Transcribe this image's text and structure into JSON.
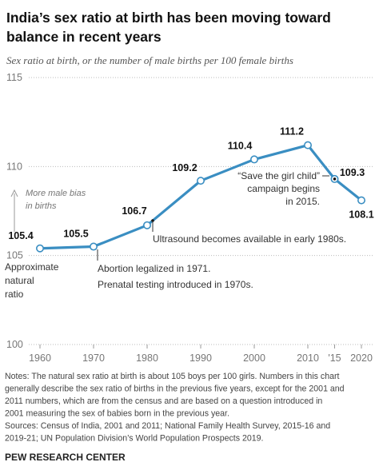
{
  "chart_data": {
    "type": "line",
    "title": [
      "India’s sex ratio at birth has been moving toward",
      "balance in recent years"
    ],
    "subtitle": "Sex ratio at birth, or the number of male births per 100 female births",
    "x": [
      1960,
      1970,
      1980,
      1990,
      2000,
      2010,
      2015,
      2020
    ],
    "series": [
      {
        "name": "Sex ratio at birth",
        "color": "#3a8ec2",
        "values": [
          105.4,
          105.5,
          106.7,
          109.2,
          110.4,
          111.2,
          109.3,
          108.1
        ]
      }
    ],
    "xlim": [
      1960,
      2020
    ],
    "xticks": [
      1960,
      1970,
      1980,
      1990,
      2000,
      2010,
      {
        "value": 2015,
        "label": "'15"
      },
      2020
    ],
    "ylim": [
      100,
      115
    ],
    "yticks": [
      100,
      105,
      110,
      115
    ],
    "grid": true,
    "annotations": {
      "bias": [
        "More male bias",
        "in births"
      ],
      "natural": [
        "Approximate",
        "natural",
        "ratio"
      ],
      "abortion": "Abortion legalized in 1971.",
      "prenatal": "Prenatal testing introduced in 1970s.",
      "ultrasound": "Ultrasound becomes available in early 1980s.",
      "campaign": [
        "“Save the girl child”",
        "campaign begins",
        "in 2015."
      ]
    },
    "notes": [
      "Notes: The natural sex ratio at birth is about 105 boys per 100 girls. Numbers in this chart",
      "generally describe the sex ratio of births in the previous five years, except for the 2001 and",
      "2011 numbers, which are from the census and are based on a question introduced in",
      "2001 measuring the sex of babies born in the previous year.",
      "Sources: Census of India, 2001 and 2011; National Family Health Survey, 2015-16 and",
      "2019-21; UN Population Division’s World Population Prospects 2019."
    ],
    "source": "PEW RESEARCH CENTER"
  }
}
